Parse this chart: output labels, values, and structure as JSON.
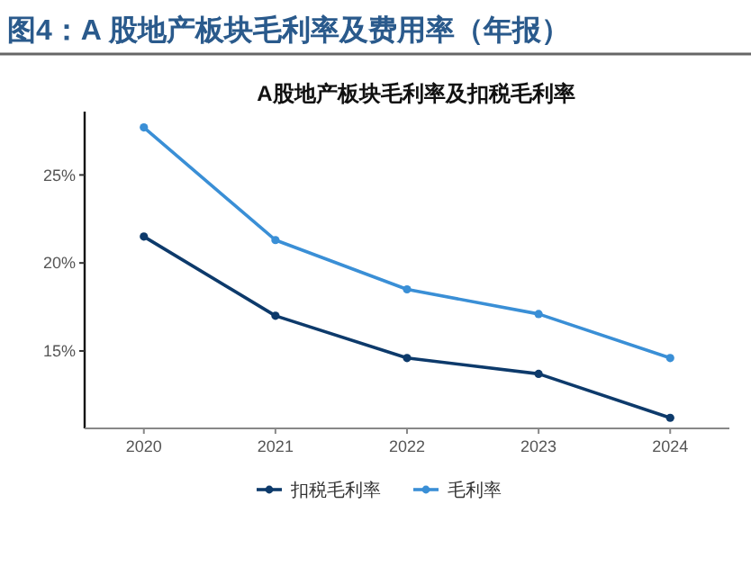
{
  "chart_data": {
    "type": "line",
    "title": "图4：A 股地产板块毛利率及费用率（年报）",
    "subtitle": "A股地产板块毛利率及扣税毛利率",
    "categories": [
      "2020",
      "2021",
      "2022",
      "2023",
      "2024"
    ],
    "series": [
      {
        "name": "扣税毛利率",
        "color": "#0d3a6b",
        "values": [
          21.5,
          17.0,
          14.6,
          13.7,
          11.2
        ]
      },
      {
        "name": "毛利率",
        "color": "#3a8fd6",
        "values": [
          27.7,
          21.3,
          18.5,
          17.1,
          14.6
        ]
      }
    ],
    "ylim": [
      10.6,
      28.6
    ],
    "yticks": [
      {
        "value": 15,
        "label": "15%"
      },
      {
        "value": 20,
        "label": "20%"
      },
      {
        "value": 25,
        "label": "25%"
      }
    ],
    "grid": false,
    "legend": "bottom",
    "marker": "circle",
    "line_style": "solid"
  }
}
